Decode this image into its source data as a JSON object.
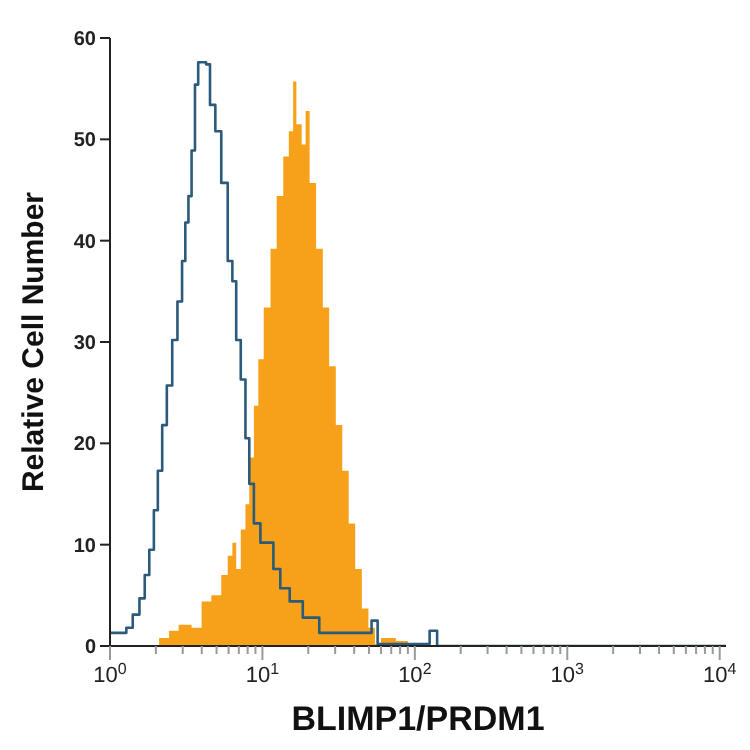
{
  "chart_data": {
    "type": "area",
    "xlabel": "BLIMP1/PRDM1",
    "ylabel": "Relative Cell Number",
    "log": "x",
    "grid": false,
    "legend": false,
    "marker": "none",
    "xlim": [
      1,
      11000
    ],
    "ylim": [
      0,
      60
    ],
    "yticks": [
      0,
      10,
      20,
      30,
      40,
      50,
      60
    ],
    "xticks": [
      {
        "value": 1,
        "label": "10$^{0}$"
      },
      {
        "value": 2,
        "label": null
      },
      {
        "value": 3,
        "label": null
      },
      {
        "value": 4,
        "label": null
      },
      {
        "value": 5,
        "label": null
      },
      {
        "value": 6,
        "label": null
      },
      {
        "value": 7,
        "label": null
      },
      {
        "value": 8,
        "label": null
      },
      {
        "value": 9,
        "label": null
      },
      {
        "value": 10,
        "label": "10$^{1}$"
      },
      {
        "value": 20,
        "label": null
      },
      {
        "value": 30,
        "label": null
      },
      {
        "value": 40,
        "label": null
      },
      {
        "value": 50,
        "label": null
      },
      {
        "value": 60,
        "label": null
      },
      {
        "value": 70,
        "label": null
      },
      {
        "value": 80,
        "label": null
      },
      {
        "value": 90,
        "label": null
      },
      {
        "value": 100,
        "label": "10$^{2}$"
      },
      {
        "value": 200,
        "label": null
      },
      {
        "value": 300,
        "label": null
      },
      {
        "value": 400,
        "label": null
      },
      {
        "value": 500,
        "label": null
      },
      {
        "value": 600,
        "label": null
      },
      {
        "value": 700,
        "label": null
      },
      {
        "value": 800,
        "label": null
      },
      {
        "value": 900,
        "label": null
      },
      {
        "value": 1000,
        "label": "10$^{3}$"
      },
      {
        "value": 2000,
        "label": null
      },
      {
        "value": 3000,
        "label": null
      },
      {
        "value": 4000,
        "label": null
      },
      {
        "value": 5000,
        "label": null
      },
      {
        "value": 6000,
        "label": null
      },
      {
        "value": 7000,
        "label": null
      },
      {
        "value": 8000,
        "label": null
      },
      {
        "value": 9000,
        "label": null
      },
      {
        "value": 10000,
        "label": "10$^{4}$"
      }
    ],
    "series": [
      {
        "color": "#f7a11a",
        "x": [
          1.94,
          2.1,
          2.44,
          2.82,
          3.43,
          3.99,
          4.62,
          5.37,
          5.92,
          6.35,
          6.73,
          7.21,
          7.74,
          8.2,
          8.79,
          9.4,
          10.2,
          11.3,
          12.4,
          13.7,
          14.9,
          15.9,
          16.7,
          18.1,
          19.2,
          20.4,
          22.5,
          24.9,
          27.4,
          30.3,
          33.4,
          36.8,
          40.6,
          44.9,
          49.6,
          54.7,
          60,
          75,
          90,
          11000
        ],
        "values": [
          0,
          0.8,
          1.5,
          2.1,
          1.8,
          4.4,
          5,
          7,
          8.9,
          10.2,
          7.6,
          11.5,
          14,
          18.6,
          23.7,
          28.3,
          33.4,
          39.2,
          44.4,
          48.3,
          50.8,
          55.7,
          51.5,
          49.5,
          52.8,
          45.7,
          39.2,
          33.4,
          27.6,
          21.8,
          17.3,
          12.1,
          7.6,
          3.7,
          1.8,
          0.2,
          0.8,
          0.5,
          0,
          0
        ]
      },
      {
        "type": "step",
        "color": "#2b5a7a",
        "x": [
          1,
          1.28,
          1.41,
          1.56,
          1.69,
          1.81,
          1.94,
          2.06,
          2.2,
          2.36,
          2.56,
          2.77,
          2.97,
          3.12,
          3.27,
          3.43,
          3.61,
          3.79,
          4.27,
          4.53,
          4.91,
          5.37,
          5.92,
          6.35,
          6.73,
          7.21,
          7.74,
          8.2,
          8.79,
          9.7,
          10.7,
          11.8,
          13.1,
          15.1,
          18.4,
          23.6,
          47,
          52,
          57,
          125,
          140,
          11000
        ],
        "values": [
          1.3,
          1.8,
          3.1,
          4.7,
          7,
          9.5,
          13.4,
          17.3,
          21.8,
          25.7,
          30.2,
          34,
          38,
          41.8,
          44.4,
          48.9,
          55.4,
          57.6,
          57.4,
          53.4,
          50.8,
          45.7,
          38,
          36,
          30.2,
          26.3,
          20.5,
          16,
          12.1,
          10.2,
          10.2,
          7.6,
          5.7,
          4.4,
          2.8,
          1.3,
          1.3,
          2.5,
          0.2,
          1.5,
          0,
          0
        ]
      }
    ]
  }
}
